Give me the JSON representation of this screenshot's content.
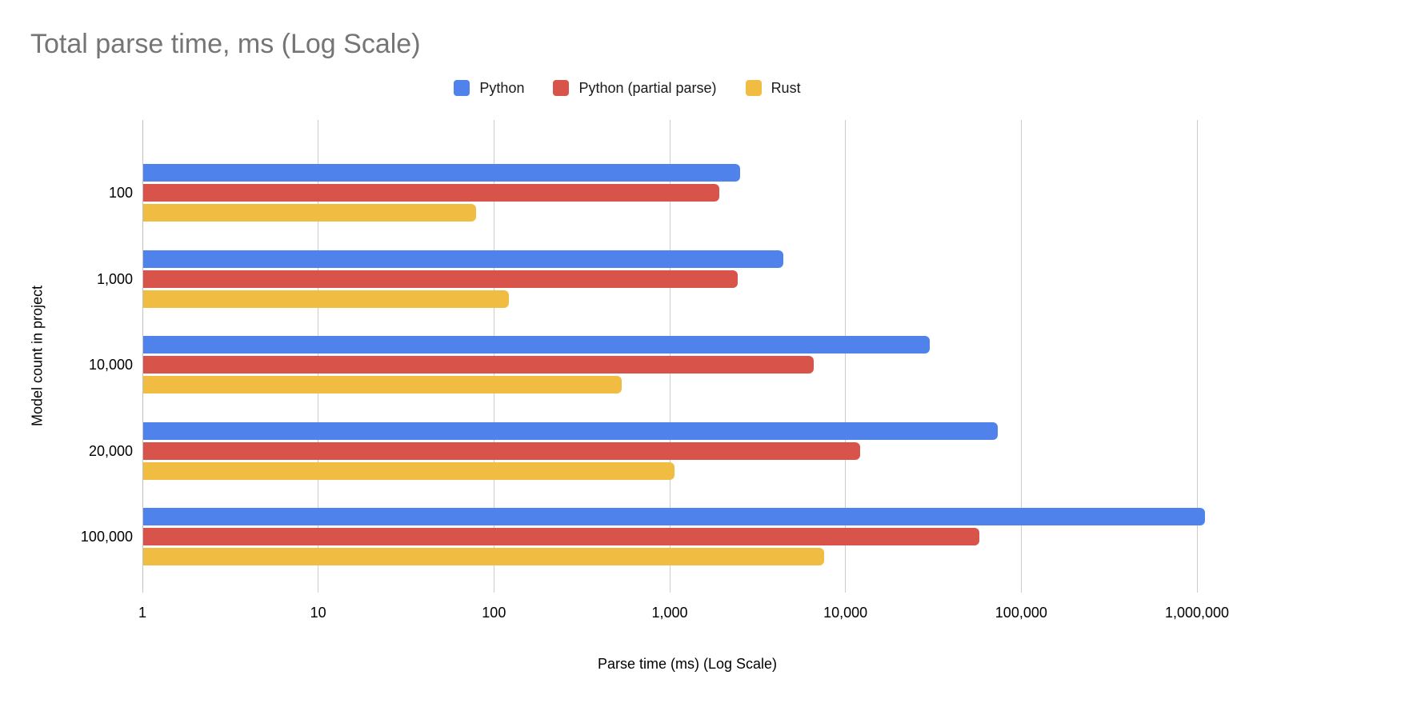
{
  "chart_data": {
    "type": "bar",
    "orientation": "horizontal",
    "title": "Total parse time, ms (Log Scale)",
    "xlabel": "Parse time (ms) (Log Scale)",
    "ylabel": "Model count in project",
    "x_scale": "log10",
    "xlim": [
      1,
      1000000
    ],
    "grid": true,
    "legend_position": "top-center",
    "x_ticks": [
      "1",
      "10",
      "100",
      "1,000",
      "10,000",
      "100,000",
      "1,000,000"
    ],
    "x_tick_values": [
      1,
      10,
      100,
      1000,
      10000,
      100000,
      1000000
    ],
    "categories": [
      "100",
      "1,000",
      "10,000",
      "20,000",
      "100,000"
    ],
    "series": [
      {
        "name": "Python",
        "color": "#5082EB",
        "values": [
          2500,
          4400,
          30000,
          73000,
          1100000
        ]
      },
      {
        "name": "Python (partial parse)",
        "color": "#D8544A",
        "values": [
          1900,
          2400,
          6500,
          12000,
          57000
        ]
      },
      {
        "name": "Rust",
        "color": "#F0BD42",
        "values": [
          78,
          120,
          530,
          1050,
          7500
        ]
      }
    ],
    "colors": {
      "title_gray": "#757575",
      "gridline": "#cccccc",
      "label_black": "#000000"
    }
  }
}
